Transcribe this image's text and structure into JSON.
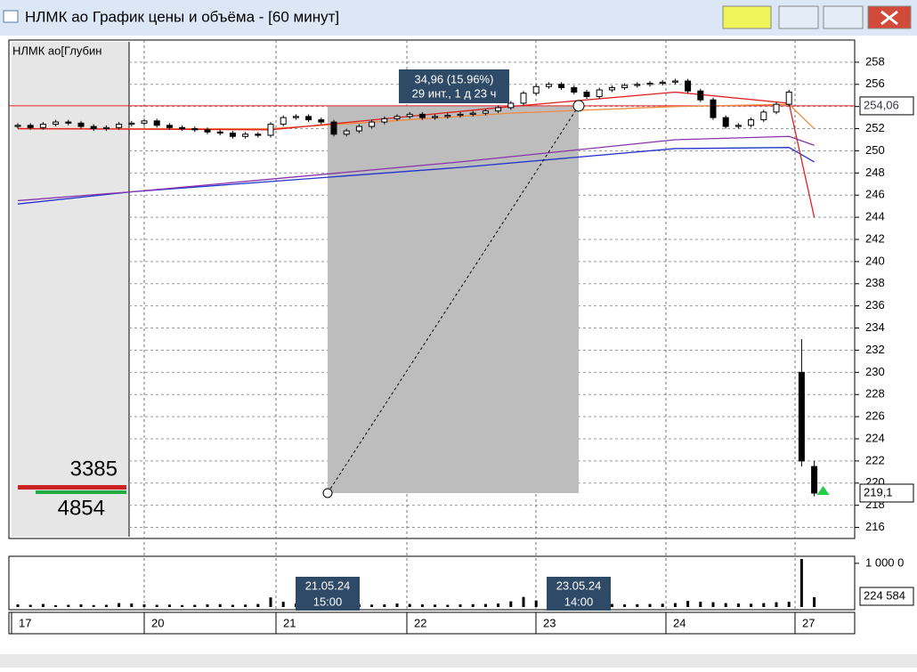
{
  "window": {
    "title": "НЛМК ао График цены и объёма - [60 минут]"
  },
  "chart_data": {
    "type": "candlestick",
    "instrument_label": "НЛМК ао[Глубин",
    "depth": {
      "top": "3385",
      "bottom": "4854"
    },
    "open": [
      252.2,
      252.3,
      252.1,
      252.4,
      252.6,
      252.5,
      252.2,
      252.0,
      252.1,
      252.4,
      252.5,
      252.7,
      252.3,
      252.1,
      252.0,
      251.9,
      251.7,
      251.6,
      251.3,
      251.5,
      251.4,
      252.4,
      253.0,
      253.1,
      252.8,
      252.6,
      251.5,
      251.8,
      252.2,
      252.6,
      252.9,
      253.1,
      253.3,
      253.0,
      253.1,
      253.2,
      253.3,
      253.4,
      253.6,
      253.9,
      254.3,
      255.2,
      255.8,
      256.0,
      255.7,
      255.3,
      254.9,
      255.5,
      255.7,
      255.9,
      256.0,
      256.1,
      256.2,
      256.3,
      255.4,
      254.6,
      253.0,
      252.2,
      252.3,
      252.8,
      253.5,
      254.2,
      230,
      221.5
    ],
    "high": [
      252.5,
      252.5,
      252.6,
      252.8,
      252.8,
      252.7,
      252.4,
      252.3,
      252.6,
      252.7,
      252.9,
      252.9,
      252.5,
      252.3,
      252.2,
      252.1,
      251.9,
      251.8,
      251.7,
      251.7,
      252.6,
      253.2,
      253.3,
      253.3,
      253.0,
      252.8,
      252.0,
      252.4,
      252.8,
      253.1,
      253.3,
      253.5,
      253.5,
      253.3,
      253.4,
      253.5,
      253.6,
      253.8,
      254.1,
      254.5,
      255.4,
      256.0,
      256.2,
      256.2,
      255.9,
      255.5,
      255.7,
      255.9,
      256.1,
      256.2,
      256.3,
      256.4,
      256.5,
      256.5,
      255.6,
      254.8,
      253.2,
      252.5,
      253.0,
      253.7,
      254.4,
      255.5,
      233,
      222
    ],
    "low": [
      252.0,
      251.9,
      251.9,
      252.2,
      252.3,
      252.0,
      251.8,
      251.8,
      251.9,
      252.2,
      252.3,
      252.1,
      251.9,
      251.8,
      251.7,
      251.5,
      251.4,
      251.1,
      251.1,
      251.2,
      251.2,
      252.2,
      252.8,
      252.6,
      252.4,
      251.3,
      251.3,
      251.6,
      252.0,
      252.4,
      252.7,
      252.9,
      252.8,
      252.8,
      252.9,
      253.0,
      253.1,
      253.2,
      253.4,
      253.7,
      254.1,
      255.0,
      255.6,
      255.5,
      255.1,
      254.7,
      254.7,
      255.3,
      255.5,
      255.7,
      255.8,
      255.9,
      256.0,
      255.2,
      254.4,
      252.8,
      252.0,
      252.0,
      252.1,
      252.6,
      253.3,
      254.0,
      221.5,
      218.8
    ],
    "close": [
      252.3,
      252.1,
      252.4,
      252.6,
      252.5,
      252.2,
      252.0,
      252.1,
      252.4,
      252.5,
      252.7,
      252.3,
      252.1,
      252.0,
      251.9,
      251.7,
      251.6,
      251.3,
      251.5,
      251.4,
      252.4,
      253.0,
      253.1,
      252.8,
      252.6,
      251.5,
      251.8,
      252.2,
      252.6,
      252.9,
      253.1,
      253.3,
      253.0,
      253.1,
      253.2,
      253.3,
      253.4,
      253.6,
      253.9,
      254.3,
      255.2,
      255.8,
      256.0,
      255.7,
      255.3,
      254.9,
      255.5,
      255.7,
      255.9,
      256.0,
      256.1,
      256.2,
      256.3,
      255.4,
      254.6,
      253.0,
      252.2,
      252.3,
      252.8,
      253.5,
      254.2,
      255.3,
      222.0,
      219.1
    ],
    "ma": [
      {
        "color": "#2233cc",
        "x": [
          0,
          9,
          35,
          52,
          61,
          63
        ],
        "values": [
          245.2,
          246.3,
          248.5,
          250.2,
          250.3,
          249.0
        ]
      },
      {
        "color": "#8833aa",
        "x": [
          0,
          9,
          35,
          52,
          61,
          63
        ],
        "values": [
          245.5,
          246.3,
          249.0,
          251.0,
          251.3,
          250.5
        ]
      },
      {
        "color": "#f08a40",
        "x": [
          0,
          20,
          39,
          52,
          61,
          63
        ],
        "values": [
          252.0,
          252.0,
          253.4,
          254.0,
          254.2,
          252.0
        ]
      },
      {
        "color": "#e02020",
        "x": [
          0,
          20,
          39,
          52,
          61,
          63
        ],
        "values": [
          252.0,
          251.9,
          254.0,
          255.3,
          254.3,
          244.0
        ]
      }
    ],
    "ylim": [
      215,
      260
    ],
    "yticks": [
      216,
      218,
      220,
      222,
      224,
      226,
      228,
      230,
      232,
      234,
      236,
      238,
      240,
      242,
      244,
      246,
      248,
      250,
      252,
      254,
      256,
      258
    ],
    "level": {
      "value": 254.06,
      "label": "254,06"
    },
    "last": {
      "value": 219.1,
      "label": "219,1"
    },
    "measure": {
      "from": 219.1,
      "to": 254.06,
      "text1": "34,96 (15.96%)",
      "text2": "29 инт., 1 д 23 ч",
      "start_date": "21.05.24",
      "start_hour": "15:00",
      "end_date": "23.05.24",
      "end_hour": "14:00"
    },
    "volume": {
      "values": [
        60000,
        50000,
        70000,
        40000,
        50000,
        60000,
        45000,
        50000,
        90000,
        80000,
        60000,
        50000,
        55000,
        45000,
        50000,
        60000,
        65000,
        50000,
        55000,
        70000,
        220000,
        120000,
        80000,
        60000,
        70000,
        90000,
        70000,
        60000,
        55000,
        60000,
        80000,
        70000,
        60000,
        55000,
        50000,
        60000,
        65000,
        70000,
        80000,
        130000,
        230000,
        150000,
        110000,
        90000,
        80000,
        90000,
        80000,
        70000,
        60000,
        65000,
        70000,
        75000,
        90000,
        140000,
        120000,
        110000,
        90000,
        80000,
        75000,
        90000,
        110000,
        120000,
        1100000,
        224584
      ],
      "ylim": [
        0,
        1100000
      ],
      "yticks": [
        {
          "value": 1000000,
          "label": "1 000 0"
        }
      ],
      "last_label": "224 584"
    },
    "dates": [
      "17",
      "20",
      "21",
      "22",
      "23",
      "24",
      "27"
    ]
  }
}
